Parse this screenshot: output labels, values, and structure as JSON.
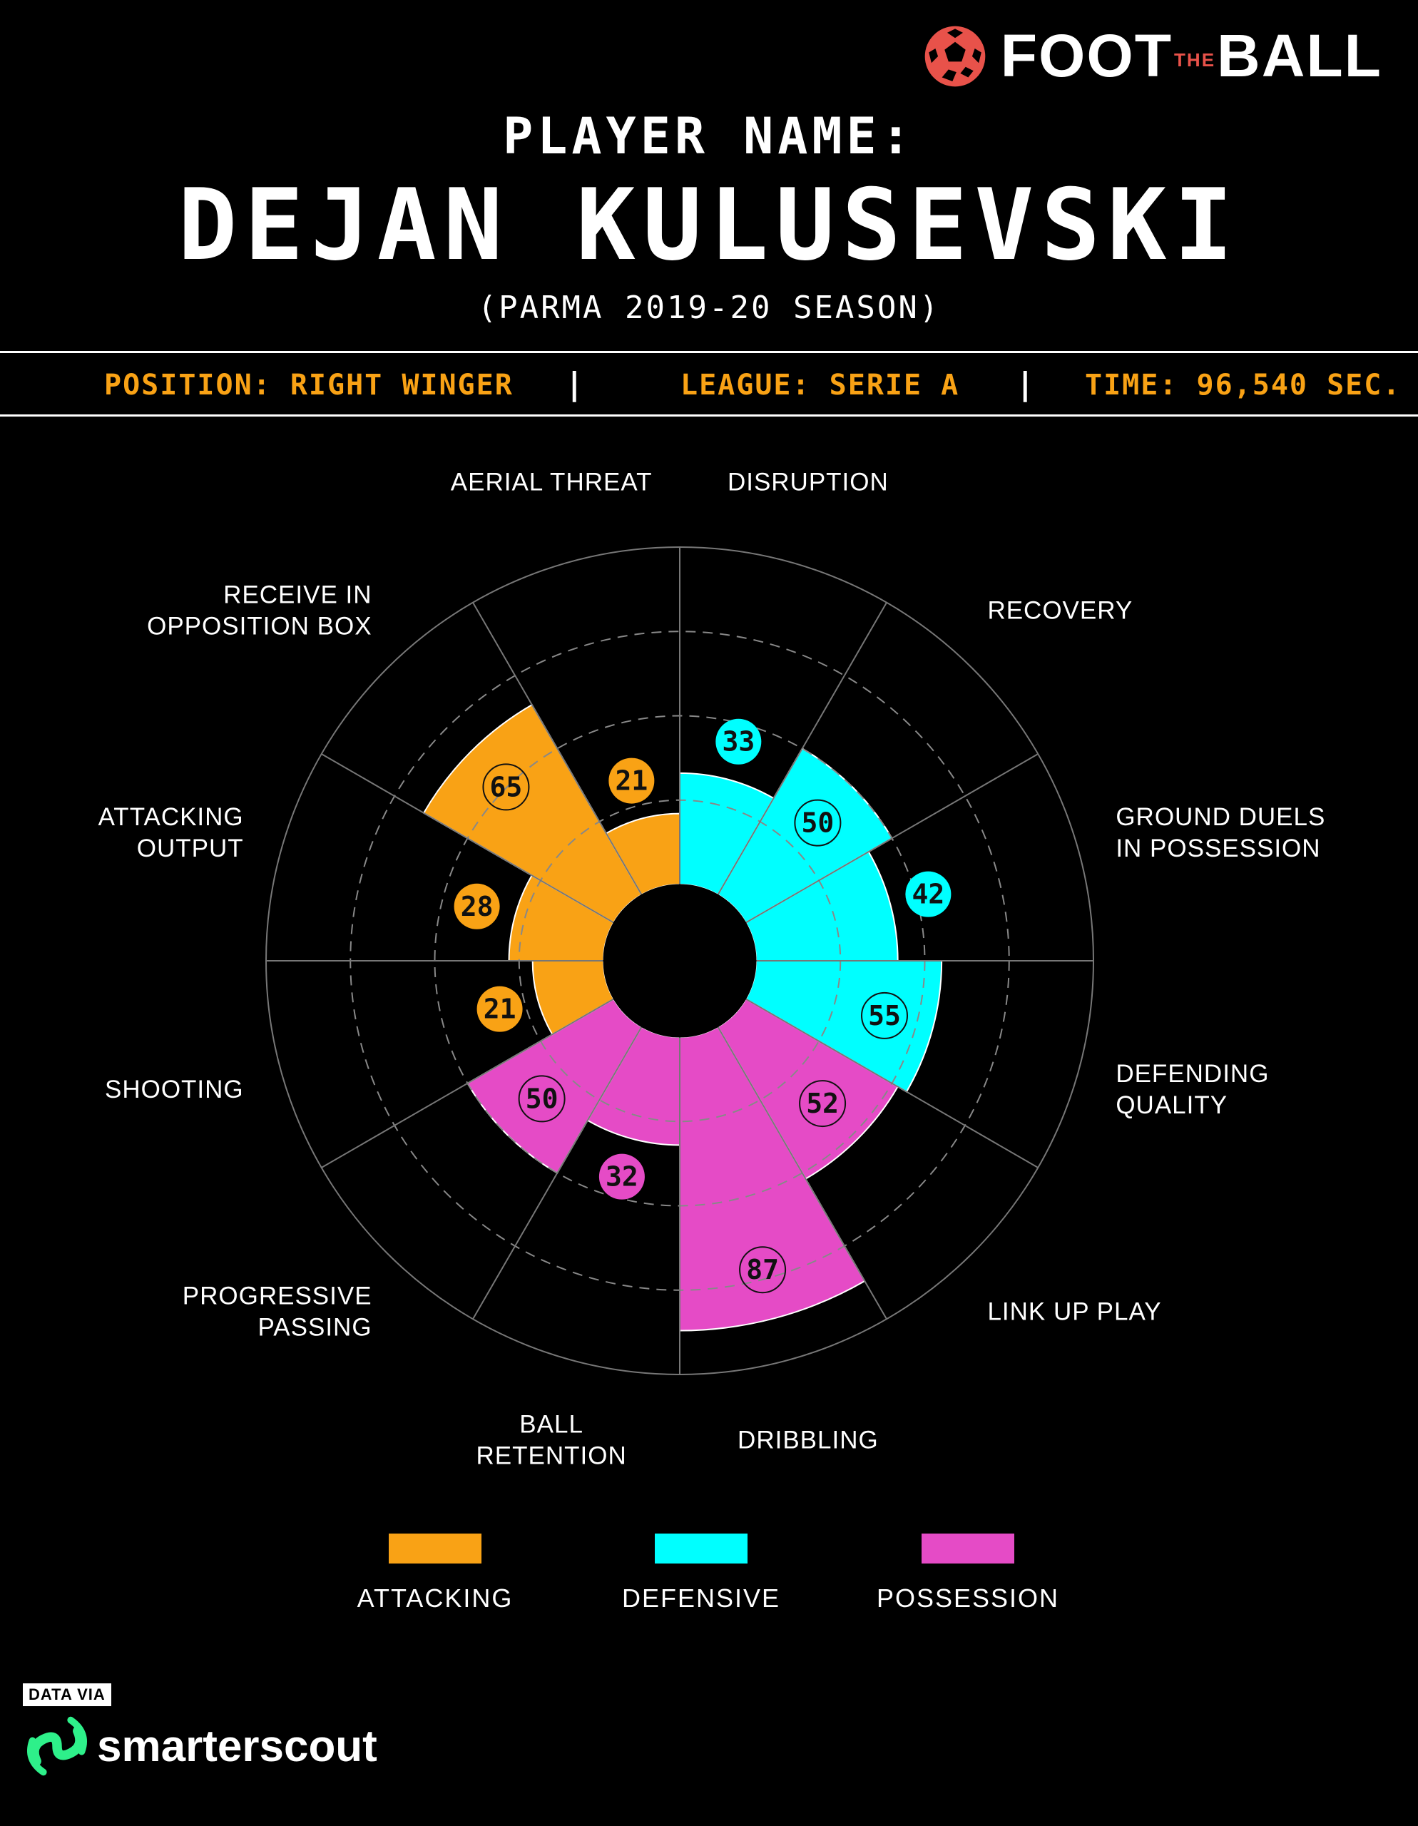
{
  "brand": {
    "name_part1": "FOOT",
    "name_part2": "THE",
    "name_part3": "BALL"
  },
  "header": {
    "title_label": "PLAYER NAME:",
    "player_name": "DEJAN KULUSEVSKI",
    "season": "(PARMA 2019-20 SEASON)"
  },
  "info_bar": {
    "position": "POSITION: RIGHT WINGER",
    "separator": "|",
    "league": "LEAGUE: SERIE A",
    "time": "TIME: 96,540 SEC."
  },
  "colors": {
    "attacking": "#f9a215",
    "defensive": "#00ffff",
    "possession": "#e54bc6",
    "grid": "#777777"
  },
  "chart_data": {
    "type": "polar-bar",
    "title": "",
    "max": 100,
    "rings": [
      25,
      50,
      75,
      100
    ],
    "categories": [
      {
        "label": [
          "DISRUPTION"
        ],
        "value": 33,
        "group": "defensive"
      },
      {
        "label": [
          "RECOVERY"
        ],
        "value": 50,
        "group": "defensive"
      },
      {
        "label": [
          "GROUND DUELS",
          "IN POSSESSION"
        ],
        "value": 42,
        "group": "defensive"
      },
      {
        "label": [
          "DEFENDING",
          "QUALITY"
        ],
        "value": 55,
        "group": "defensive"
      },
      {
        "label": [
          "LINK UP PLAY"
        ],
        "value": 52,
        "group": "possession"
      },
      {
        "label": [
          "DRIBBLING"
        ],
        "value": 87,
        "group": "possession"
      },
      {
        "label": [
          "BALL",
          "RETENTION"
        ],
        "value": 32,
        "group": "possession"
      },
      {
        "label": [
          "PROGRESSIVE",
          "PASSING"
        ],
        "value": 50,
        "group": "possession"
      },
      {
        "label": [
          "SHOOTING"
        ],
        "value": 21,
        "group": "attacking"
      },
      {
        "label": [
          "ATTACKING",
          "OUTPUT"
        ],
        "value": 28,
        "group": "attacking"
      },
      {
        "label": [
          "RECEIVE IN",
          "OPPOSITION BOX"
        ],
        "value": 65,
        "group": "attacking"
      },
      {
        "label": [
          "AERIAL THREAT"
        ],
        "value": 21,
        "group": "attacking"
      }
    ],
    "legend": [
      {
        "group": "attacking",
        "label": "ATTACKING"
      },
      {
        "group": "defensive",
        "label": "DEFENSIVE"
      },
      {
        "group": "possession",
        "label": "POSSESSION"
      }
    ]
  },
  "source": {
    "tag": "DATA VIA",
    "name": "smarterscout"
  }
}
